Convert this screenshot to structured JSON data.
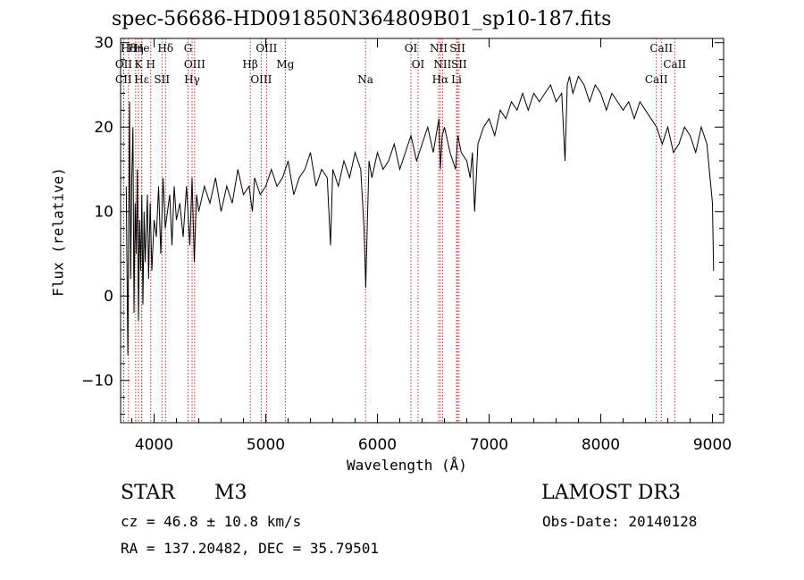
{
  "chart_data": {
    "type": "line",
    "title": "spec-56686-HD091850N364809B01_sp10-187.fits",
    "xlabel": "Wavelength (Å)",
    "ylabel": "Flux (relative)",
    "xlim": [
      3700,
      9100
    ],
    "ylim": [
      -15,
      30.5
    ],
    "x_ticks": [
      4000,
      5000,
      6000,
      7000,
      8000,
      9000
    ],
    "y_ticks": [
      -10,
      0,
      10,
      20,
      30
    ],
    "x_tick_labels": [
      "4000",
      "5000",
      "6000",
      "7000",
      "8000",
      "9000"
    ],
    "y_tick_labels": [
      "−10",
      "0",
      "10",
      "20",
      "30"
    ],
    "series": [
      {
        "name": "spectrum",
        "x": [
          3750,
          3765,
          3780,
          3790,
          3800,
          3810,
          3820,
          3830,
          3840,
          3850,
          3860,
          3870,
          3880,
          3890,
          3900,
          3910,
          3920,
          3930,
          3940,
          3950,
          3965,
          3980,
          4000,
          4020,
          4040,
          4060,
          4080,
          4100,
          4120,
          4140,
          4160,
          4180,
          4200,
          4230,
          4260,
          4290,
          4320,
          4340,
          4360,
          4380,
          4400,
          4450,
          4500,
          4550,
          4600,
          4650,
          4700,
          4750,
          4800,
          4850,
          4880,
          4900,
          4950,
          5000,
          5050,
          5100,
          5150,
          5200,
          5250,
          5300,
          5350,
          5400,
          5450,
          5500,
          5550,
          5580,
          5600,
          5650,
          5700,
          5750,
          5800,
          5850,
          5880,
          5895,
          5910,
          5925,
          5950,
          6000,
          6050,
          6100,
          6150,
          6200,
          6250,
          6300,
          6350,
          6400,
          6450,
          6500,
          6550,
          6563,
          6580,
          6600,
          6650,
          6700,
          6720,
          6750,
          6800,
          6830,
          6850,
          6870,
          6900,
          6950,
          7000,
          7050,
          7100,
          7150,
          7200,
          7250,
          7300,
          7350,
          7400,
          7450,
          7500,
          7550,
          7600,
          7650,
          7680,
          7700,
          7720,
          7750,
          7800,
          7850,
          7900,
          7950,
          8000,
          8050,
          8100,
          8150,
          8200,
          8250,
          8300,
          8350,
          8400,
          8450,
          8500,
          8550,
          8600,
          8650,
          8700,
          8750,
          8800,
          8850,
          8900,
          8950,
          9000,
          9010
        ],
        "y": [
          13,
          -7,
          23,
          2,
          14,
          20,
          -2,
          11,
          5,
          15,
          -3,
          9,
          3,
          12,
          -1,
          10,
          4,
          8,
          12,
          2,
          11,
          3,
          9,
          7,
          13,
          5,
          14,
          8,
          10,
          12,
          6,
          13,
          9,
          11,
          7,
          13,
          6,
          14,
          4,
          12,
          10,
          13,
          11,
          14,
          10,
          13,
          11,
          15,
          12,
          13,
          10,
          14,
          12,
          13,
          15,
          13,
          14,
          16,
          12,
          14,
          15,
          17,
          13,
          15,
          14,
          6,
          15,
          13,
          16,
          14,
          17,
          15,
          8,
          1,
          9,
          16,
          14,
          17,
          15,
          16,
          18,
          15,
          17,
          19,
          16,
          18,
          20,
          17,
          21,
          15,
          19,
          20,
          17,
          15,
          19,
          17,
          16,
          14,
          17,
          10,
          18,
          20,
          21,
          19,
          22,
          21,
          23,
          22,
          24,
          22,
          24,
          23,
          24,
          25,
          23,
          24,
          16,
          25,
          26,
          24,
          26,
          25,
          23,
          25,
          24,
          22,
          24,
          23,
          22,
          23,
          21,
          23,
          22,
          21,
          20,
          18,
          20,
          17,
          18,
          20,
          19,
          17,
          20,
          18,
          11,
          3
        ],
        "color": "#000000"
      }
    ],
    "line_markers": [
      {
        "label": "Hδ",
        "x": 3771
      },
      {
        "label": "K",
        "x": 3860
      },
      {
        "label": "Hε",
        "x": 3889
      },
      {
        "label": "He",
        "x": 3890
      },
      {
        "label": "OII",
        "x": 3728
      },
      {
        "label": "CII",
        "x": 3727
      },
      {
        "label": "Hη",
        "x": 3835
      },
      {
        "label": "H",
        "x": 3970
      },
      {
        "label": "SII",
        "x": 4070
      },
      {
        "label": "Hδ",
        "x": 4102
      },
      {
        "label": "OIII",
        "x": 4363
      },
      {
        "label": "Hγ",
        "x": 4340
      },
      {
        "label": "G",
        "x": 4304
      },
      {
        "label": "Hβ",
        "x": 4861
      },
      {
        "label": "OIII",
        "x": 4959
      },
      {
        "label": "OIII",
        "x": 5007
      },
      {
        "label": "Mg",
        "x": 5175
      },
      {
        "label": "Na",
        "x": 5893
      },
      {
        "label": "OI",
        "x": 6300
      },
      {
        "label": "OI",
        "x": 6364
      },
      {
        "label": "Hα",
        "x": 6563
      },
      {
        "label": "NII",
        "x": 6548
      },
      {
        "label": "NII",
        "x": 6583
      },
      {
        "label": "Li",
        "x": 6708
      },
      {
        "label": "SII",
        "x": 6717
      },
      {
        "label": "SII",
        "x": 6731
      },
      {
        "label": "CaII",
        "x": 8498
      },
      {
        "label": "CaII",
        "x": 8542
      },
      {
        "label": "CaII",
        "x": 8662
      }
    ]
  },
  "info": {
    "object_class": "STAR",
    "subclass": "M3",
    "survey": "LAMOST DR3",
    "cz": "cz = 46.8 ± 10.8 km/s",
    "obs_date": "Obs-Date: 20140128",
    "coords": "RA = 137.20482, DEC =  35.79501"
  }
}
